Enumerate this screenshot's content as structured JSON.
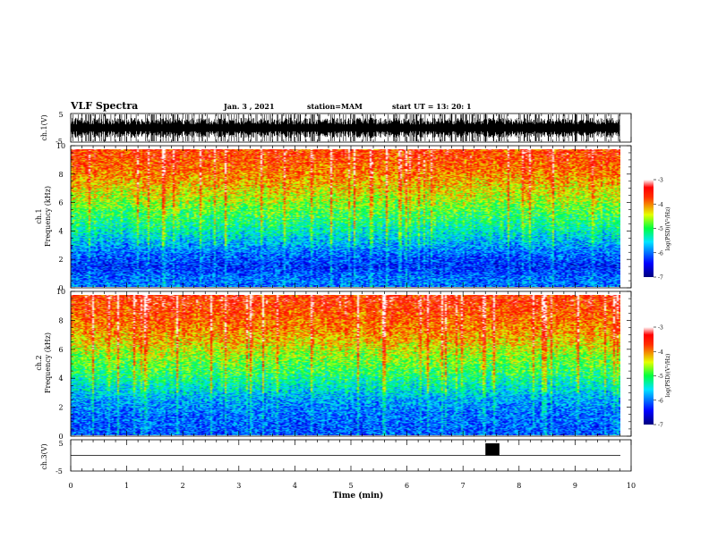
{
  "header": {
    "title": "VLF Spectra",
    "date": "Jan. 3 , 2021",
    "station": "station=MAM",
    "start": "start UT = 13: 20: 1"
  },
  "chart_data": [
    {
      "type": "line",
      "name": "ch1-waveform",
      "ylabel": "ch.1(V)",
      "ylim": [
        -5,
        5
      ],
      "y_ticks": [
        "5",
        "-5"
      ],
      "xlim": [
        0,
        10
      ],
      "data_end_min": 9.8,
      "description_values": {
        "amplitude_range": [
          -5,
          5
        ]
      }
    },
    {
      "type": "heatmap",
      "name": "ch1-spectrogram",
      "ylabel": "ch.1\nFrequency (kHz)",
      "ylim": [
        0,
        10
      ],
      "y_ticks": [
        "0",
        "2",
        "4",
        "6",
        "8",
        "10"
      ],
      "xlim": [
        0,
        10
      ],
      "data_end_min": 9.8,
      "colorbar": {
        "label": "log(PSD)(V²/Hz)",
        "range": [
          -7,
          -3
        ],
        "ticks": [
          "-3",
          "-4",
          "-5",
          "-6",
          "-7"
        ]
      },
      "mean_log_psd_by_freq_khz": [
        [
          0.5,
          -6.0
        ],
        [
          1.5,
          -6.3
        ],
        [
          2.5,
          -6.0
        ],
        [
          3.5,
          -5.6
        ],
        [
          4.5,
          -5.2
        ],
        [
          5.5,
          -4.9
        ],
        [
          6.5,
          -4.5
        ],
        [
          7.5,
          -4.2
        ],
        [
          8.5,
          -3.9
        ],
        [
          9.5,
          -3.7
        ]
      ]
    },
    {
      "type": "heatmap",
      "name": "ch2-spectrogram",
      "ylabel": "ch.2\nFrequency (kHz)",
      "ylim": [
        0,
        10
      ],
      "y_ticks": [
        "0",
        "2",
        "4",
        "6",
        "8",
        "10"
      ],
      "xlim": [
        0,
        10
      ],
      "data_end_min": 9.8,
      "colorbar": {
        "label": "log(PSD)(V²/Hz)",
        "range": [
          -7,
          -3
        ],
        "ticks": [
          "-3",
          "-4",
          "-5",
          "-6",
          "-7"
        ]
      },
      "mean_log_psd_by_freq_khz": [
        [
          0.5,
          -6.1
        ],
        [
          1.5,
          -6.0
        ],
        [
          2.5,
          -5.8
        ],
        [
          3.5,
          -5.4
        ],
        [
          4.5,
          -5.0
        ],
        [
          5.5,
          -4.7
        ],
        [
          6.5,
          -4.3
        ],
        [
          7.5,
          -4.0
        ],
        [
          8.5,
          -3.8
        ],
        [
          9.5,
          -3.6
        ]
      ]
    },
    {
      "type": "line",
      "name": "ch3-waveform",
      "ylabel": "ch.3(V)",
      "ylim": [
        -5,
        5
      ],
      "y_ticks": [
        "5",
        "-5"
      ],
      "xlim": [
        0,
        10
      ],
      "xlabel": "Time (min)",
      "x_ticks": [
        "0",
        "1",
        "2",
        "3",
        "4",
        "5",
        "6",
        "7",
        "8",
        "9",
        "10"
      ],
      "baseline_v": 0,
      "pulse": {
        "t_start_min": 7.4,
        "t_end_min": 7.65,
        "high_v": 5
      }
    }
  ]
}
